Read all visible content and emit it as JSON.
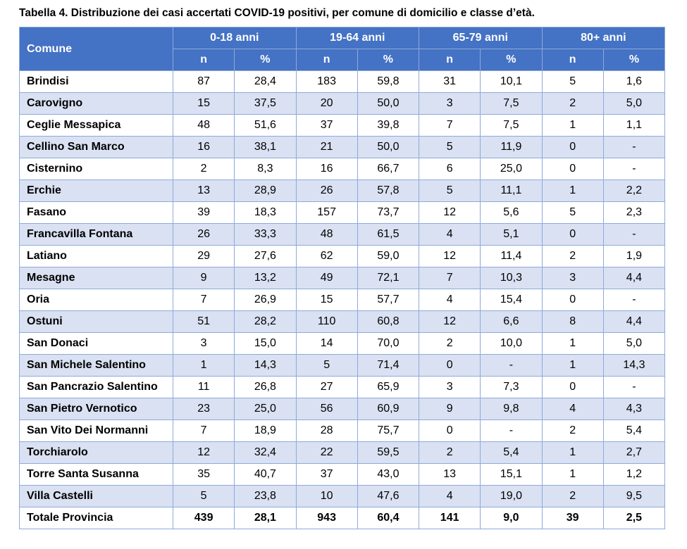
{
  "title": "Tabella 4. Distribuzione dei casi accertati COVID-19 positivi, per comune di domicilio e classe d’età.",
  "table": {
    "first_header": "Comune",
    "groups": [
      "0-18 anni",
      "19-64 anni",
      "65-79 anni",
      "80+ anni"
    ],
    "subheaders": [
      "n",
      "%",
      "n",
      "%",
      "n",
      "%",
      "n",
      "%"
    ],
    "rows": [
      [
        "Brindisi",
        "87",
        "28,4",
        "183",
        "59,8",
        "31",
        "10,1",
        "5",
        "1,6"
      ],
      [
        "Carovigno",
        "15",
        "37,5",
        "20",
        "50,0",
        "3",
        "7,5",
        "2",
        "5,0"
      ],
      [
        "Ceglie Messapica",
        "48",
        "51,6",
        "37",
        "39,8",
        "7",
        "7,5",
        "1",
        "1,1"
      ],
      [
        "Cellino San Marco",
        "16",
        "38,1",
        "21",
        "50,0",
        "5",
        "11,9",
        "0",
        "-"
      ],
      [
        "Cisternino",
        "2",
        "8,3",
        "16",
        "66,7",
        "6",
        "25,0",
        "0",
        "-"
      ],
      [
        "Erchie",
        "13",
        "28,9",
        "26",
        "57,8",
        "5",
        "11,1",
        "1",
        "2,2"
      ],
      [
        "Fasano",
        "39",
        "18,3",
        "157",
        "73,7",
        "12",
        "5,6",
        "5",
        "2,3"
      ],
      [
        "Francavilla Fontana",
        "26",
        "33,3",
        "48",
        "61,5",
        "4",
        "5,1",
        "0",
        "-"
      ],
      [
        "Latiano",
        "29",
        "27,6",
        "62",
        "59,0",
        "12",
        "11,4",
        "2",
        "1,9"
      ],
      [
        "Mesagne",
        "9",
        "13,2",
        "49",
        "72,1",
        "7",
        "10,3",
        "3",
        "4,4"
      ],
      [
        "Oria",
        "7",
        "26,9",
        "15",
        "57,7",
        "4",
        "15,4",
        "0",
        "-"
      ],
      [
        "Ostuni",
        "51",
        "28,2",
        "110",
        "60,8",
        "12",
        "6,6",
        "8",
        "4,4"
      ],
      [
        "San Donaci",
        "3",
        "15,0",
        "14",
        "70,0",
        "2",
        "10,0",
        "1",
        "5,0"
      ],
      [
        "San Michele Salentino",
        "1",
        "14,3",
        "5",
        "71,4",
        "0",
        "-",
        "1",
        "14,3"
      ],
      [
        "San Pancrazio Salentino",
        "11",
        "26,8",
        "27",
        "65,9",
        "3",
        "7,3",
        "0",
        "-"
      ],
      [
        "San Pietro Vernotico",
        "23",
        "25,0",
        "56",
        "60,9",
        "9",
        "9,8",
        "4",
        "4,3"
      ],
      [
        "San Vito Dei Normanni",
        "7",
        "18,9",
        "28",
        "75,7",
        "0",
        "-",
        "2",
        "5,4"
      ],
      [
        "Torchiarolo",
        "12",
        "32,4",
        "22",
        "59,5",
        "2",
        "5,4",
        "1",
        "2,7"
      ],
      [
        "Torre Santa Susanna",
        "35",
        "40,7",
        "37",
        "43,0",
        "13",
        "15,1",
        "1",
        "1,2"
      ],
      [
        "Villa Castelli",
        "5",
        "23,8",
        "10",
        "47,6",
        "4",
        "19,0",
        "2",
        "9,5"
      ]
    ],
    "total": [
      "Totale Provincia",
      "439",
      "28,1",
      "943",
      "60,4",
      "141",
      "9,0",
      "39",
      "2,5"
    ]
  }
}
